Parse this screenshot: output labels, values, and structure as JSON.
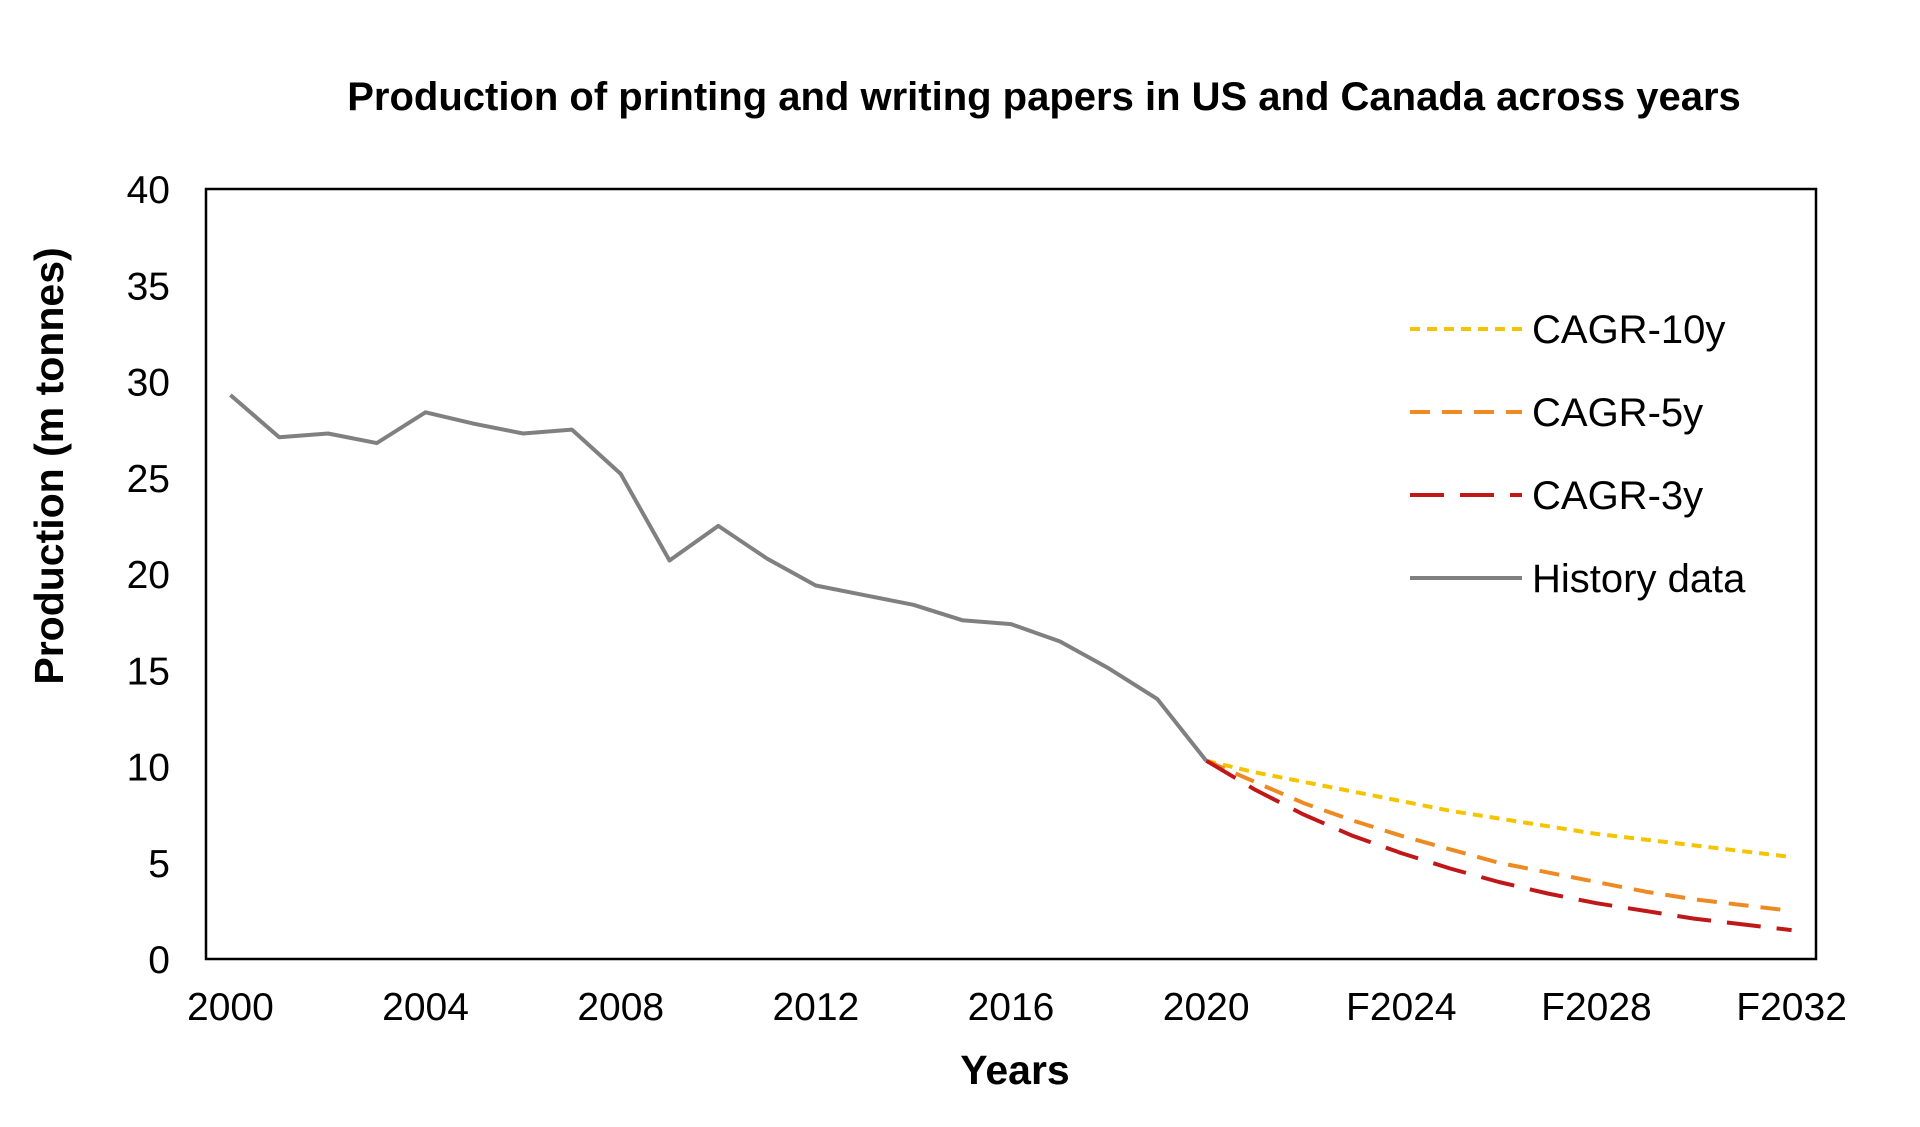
{
  "chart_data": {
    "type": "line",
    "title": "Production of printing and writing papers in US and Canada across years",
    "xlabel": "Years",
    "ylabel": "Production (m tonnes)",
    "ylim": [
      0,
      40
    ],
    "yticks": [
      "0",
      "5",
      "10",
      "15",
      "20",
      "25",
      "30",
      "35",
      "40"
    ],
    "xticks": [
      {
        "x": 2000,
        "label": "2000"
      },
      {
        "x": 2004,
        "label": "2004"
      },
      {
        "x": 2008,
        "label": "2008"
      },
      {
        "x": 2012,
        "label": "2012"
      },
      {
        "x": 2016,
        "label": "2016"
      },
      {
        "x": 2020,
        "label": "2020"
      },
      {
        "x": 2024,
        "label": "F2024"
      },
      {
        "x": 2028,
        "label": "F2028"
      },
      {
        "x": 2032,
        "label": "F2032"
      }
    ],
    "xlim": [
      1999.5,
      2032.5
    ],
    "grid": false,
    "legend_position": "right",
    "series": [
      {
        "name": "CAGR-10y",
        "color": "#f5c400",
        "dash": "short",
        "x": [
          2020,
          2021,
          2022,
          2023,
          2024,
          2025,
          2026,
          2027,
          2028,
          2029,
          2030,
          2031,
          2032
        ],
        "values": [
          10.3,
          9.7,
          9.2,
          8.7,
          8.2,
          7.7,
          7.3,
          6.9,
          6.5,
          6.2,
          5.9,
          5.6,
          5.3
        ]
      },
      {
        "name": "CAGR-5y",
        "color": "#ee8a22",
        "dash": "medium",
        "x": [
          2020,
          2021,
          2022,
          2023,
          2024,
          2025,
          2026,
          2027,
          2028,
          2029,
          2030,
          2031,
          2032
        ],
        "values": [
          10.3,
          9.2,
          8.1,
          7.2,
          6.4,
          5.7,
          5.0,
          4.5,
          4.0,
          3.5,
          3.1,
          2.8,
          2.5
        ]
      },
      {
        "name": "CAGR-3y",
        "color": "#c01818",
        "dash": "long",
        "x": [
          2020,
          2021,
          2022,
          2023,
          2024,
          2025,
          2026,
          2027,
          2028,
          2029,
          2030,
          2031,
          2032
        ],
        "values": [
          10.3,
          8.8,
          7.5,
          6.4,
          5.5,
          4.7,
          4.0,
          3.4,
          2.9,
          2.5,
          2.1,
          1.8,
          1.5
        ]
      },
      {
        "name": "History data",
        "color": "#808080",
        "dash": "solid",
        "x": [
          2000,
          2001,
          2002,
          2003,
          2004,
          2005,
          2006,
          2007,
          2008,
          2009,
          2010,
          2011,
          2012,
          2013,
          2014,
          2015,
          2016,
          2017,
          2018,
          2019,
          2020
        ],
        "values": [
          29.3,
          27.1,
          27.3,
          26.8,
          28.4,
          27.8,
          27.3,
          27.5,
          25.2,
          20.7,
          22.5,
          20.8,
          19.4,
          18.9,
          18.4,
          17.6,
          17.4,
          16.5,
          15.1,
          13.5,
          10.3
        ]
      }
    ]
  }
}
